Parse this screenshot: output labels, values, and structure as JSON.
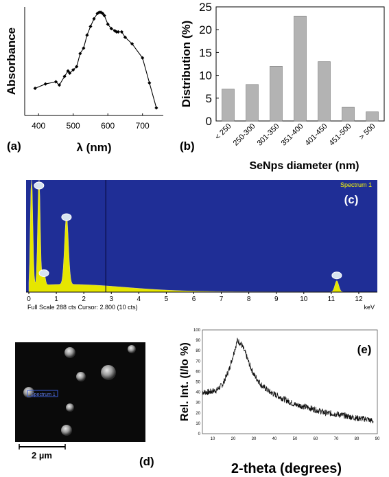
{
  "chart_data": [
    {
      "panel": "(a)",
      "type": "line",
      "xlabel": "λ (nm)",
      "ylabel": "Absorbance",
      "xlim": [
        360,
        760
      ],
      "ylim": [
        0.05,
        1.05
      ],
      "xticks": [
        400,
        500,
        600,
        700
      ],
      "grid": false,
      "marker": "diamond",
      "x": [
        390,
        420,
        450,
        460,
        475,
        485,
        490,
        500,
        510,
        520,
        530,
        540,
        550,
        560,
        570,
        575,
        580,
        585,
        590,
        600,
        610,
        620,
        625,
        630,
        640,
        650,
        670,
        700,
        720,
        740
      ],
      "y": [
        0.3,
        0.34,
        0.36,
        0.33,
        0.41,
        0.46,
        0.44,
        0.47,
        0.5,
        0.62,
        0.67,
        0.79,
        0.87,
        0.94,
        0.99,
        1.0,
        1.0,
        0.99,
        0.97,
        0.89,
        0.85,
        0.83,
        0.82,
        0.82,
        0.82,
        0.77,
        0.71,
        0.58,
        0.35,
        0.12
      ]
    },
    {
      "panel": "(b)",
      "type": "bar",
      "xlabel": "SeNps diameter (nm)",
      "ylabel": "Distribution (%)",
      "ylim": [
        0,
        25
      ],
      "yticks": [
        0,
        5,
        10,
        15,
        20,
        25
      ],
      "categories": [
        "< 250",
        "250-300",
        "301-350",
        "351-400",
        "401-450",
        "451-500",
        "> 500"
      ],
      "values": [
        7,
        8,
        12,
        23,
        13,
        3,
        2
      ],
      "bar_color": "#b3b3b3"
    },
    {
      "panel": "(c)",
      "type": "area",
      "legend": "Spectrum 1",
      "xunit": "keV",
      "xlim": [
        0,
        12.5
      ],
      "xticks": [
        0,
        1,
        2,
        3,
        4,
        5,
        6,
        7,
        8,
        9,
        10,
        11,
        12
      ],
      "footer": "Full Scale 288 cts Cursor: 2.800  (10 cts)",
      "cursor_x": 2.8,
      "background_color": "#1f2e96",
      "fill_color": "#e6e600",
      "peaks": [
        {
          "x": 0.1,
          "height": 1.0
        },
        {
          "x": 0.37,
          "height": 1.0
        },
        {
          "x": 0.55,
          "height": 0.12
        },
        {
          "x": 1.37,
          "height": 0.62
        },
        {
          "x": 11.2,
          "height": 0.1
        }
      ],
      "element_markers_x": [
        0.37,
        0.55,
        1.37,
        11.2
      ]
    },
    {
      "panel": "(e)",
      "type": "line",
      "xlabel": "2-theta (degrees)",
      "ylabel": "Rel. Int. (I/Io %)",
      "xlim": [
        5,
        90
      ],
      "ylim": [
        0,
        100
      ],
      "xticks": [
        10,
        20,
        30,
        40,
        50,
        60,
        70,
        80,
        90
      ],
      "yticks": [
        0,
        10,
        20,
        30,
        40,
        50,
        60,
        70,
        80,
        90,
        100
      ],
      "x": [
        5,
        8,
        12,
        15,
        18,
        20,
        22,
        24,
        26,
        28,
        30,
        34,
        38,
        42,
        46,
        50,
        55,
        60,
        65,
        70,
        75,
        80,
        85,
        88
      ],
      "y": [
        40,
        40,
        42,
        48,
        62,
        76,
        90,
        86,
        77,
        66,
        57,
        46,
        40,
        36,
        32,
        28,
        26,
        23,
        20,
        19,
        17,
        15,
        14,
        12
      ]
    }
  ],
  "panel_labels": {
    "a": "(a)",
    "b": "(b)",
    "c": "(c)",
    "d": "(d)",
    "e": "(e)"
  },
  "sem": {
    "spectrum_label": "Spectrum 1",
    "scale_label": "2 µm"
  },
  "colors": {
    "bar": "#b3b3b3",
    "eds_background": "#1f2e96",
    "eds_fill": "#e6e600",
    "sem_background": "#0a0a0a"
  }
}
